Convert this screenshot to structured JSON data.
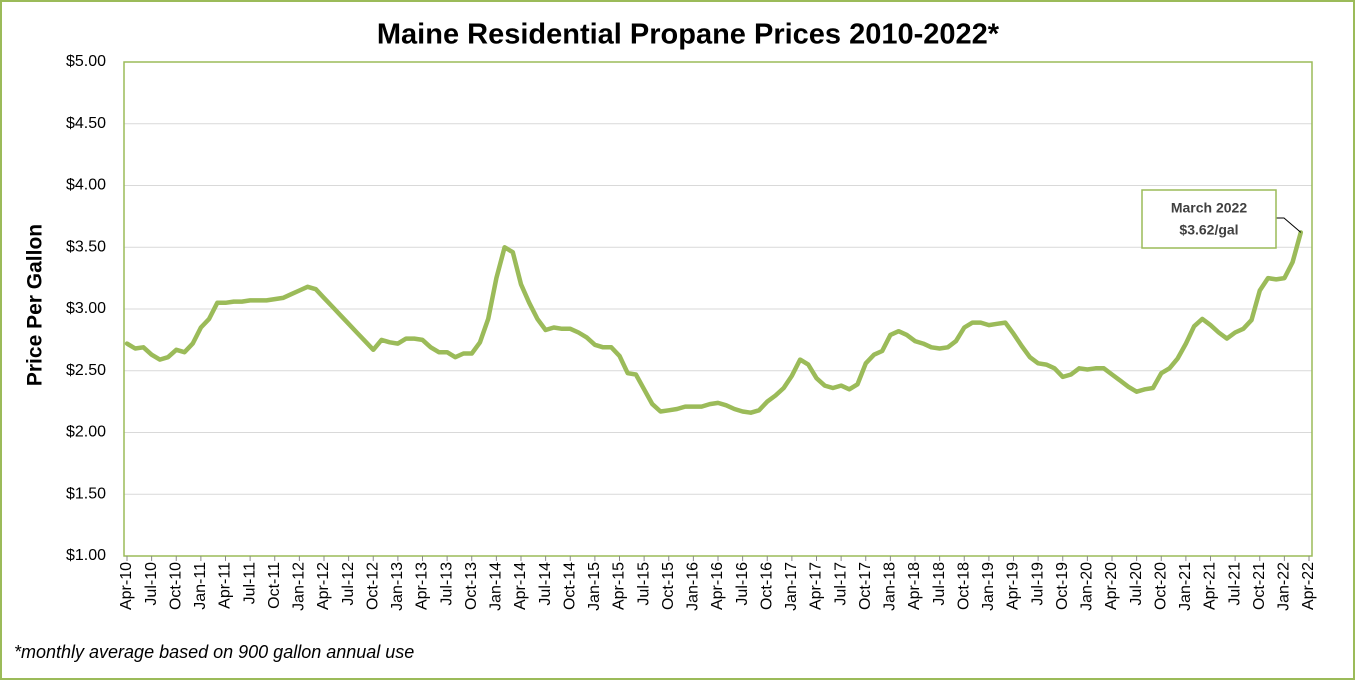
{
  "chart_data": {
    "type": "line",
    "title": "Maine Residential Propane Prices 2010-2022*",
    "y_label": "Price Per Gallon",
    "footnote": "*monthly average based on 900 gallon annual use",
    "annotation": [
      "March 2022",
      "$3.62/gal"
    ],
    "categories": [
      "Apr-10",
      null,
      null,
      "Jul-10",
      null,
      null,
      "Oct-10",
      null,
      null,
      "Jan-11",
      null,
      null,
      "Apr-11",
      null,
      null,
      "Jul-11",
      null,
      null,
      "Oct-11",
      null,
      null,
      "Jan-12",
      null,
      null,
      "Apr-12",
      null,
      null,
      "Jul-12",
      null,
      null,
      "Oct-12",
      null,
      null,
      "Jan-13",
      null,
      null,
      "Apr-13",
      null,
      null,
      "Jul-13",
      null,
      null,
      "Oct-13",
      null,
      null,
      "Jan-14",
      null,
      null,
      "Apr-14",
      null,
      null,
      "Jul-14",
      null,
      null,
      "Oct-14",
      null,
      null,
      "Jan-15",
      null,
      null,
      "Apr-15",
      null,
      null,
      "Jul-15",
      null,
      null,
      "Oct-15",
      null,
      null,
      "Jan-16",
      null,
      null,
      "Apr-16",
      null,
      null,
      "Jul-16",
      null,
      null,
      "Oct-16",
      null,
      null,
      "Jan-17",
      null,
      null,
      "Apr-17",
      null,
      null,
      "Jul-17",
      null,
      null,
      "Oct-17",
      null,
      null,
      "Jan-18",
      null,
      null,
      "Apr-18",
      null,
      null,
      "Jul-18",
      null,
      null,
      "Oct-18",
      null,
      null,
      "Jan-19",
      null,
      null,
      "Apr-19",
      null,
      null,
      "Jul-19",
      null,
      null,
      "Oct-19",
      null,
      null,
      "Jan-20",
      null,
      null,
      "Apr-20",
      null,
      null,
      "Jul-20",
      null,
      null,
      "Oct-20",
      null,
      null,
      "Jan-21",
      null,
      null,
      "Apr-21",
      null,
      null,
      "Jul-21",
      null,
      null,
      "Oct-21",
      null,
      null,
      "Jan-22",
      null,
      null,
      "Apr-22"
    ],
    "series": [
      {
        "name": "Price",
        "color": "#9bbb59",
        "values": [
          2.72,
          2.68,
          2.69,
          2.63,
          2.59,
          2.61,
          2.67,
          2.65,
          2.72,
          2.85,
          2.92,
          3.05,
          3.05,
          3.06,
          3.06,
          3.07,
          3.07,
          3.07,
          3.08,
          3.09,
          3.12,
          3.15,
          3.18,
          3.16,
          3.09,
          3.02,
          2.95,
          2.88,
          2.81,
          2.74,
          2.67,
          2.75,
          2.73,
          2.72,
          2.76,
          2.76,
          2.75,
          2.69,
          2.65,
          2.65,
          2.61,
          2.64,
          2.64,
          2.73,
          2.92,
          3.25,
          3.5,
          3.46,
          3.2,
          3.05,
          2.92,
          2.83,
          2.85,
          2.84,
          2.84,
          2.81,
          2.77,
          2.71,
          2.69,
          2.69,
          2.62,
          2.48,
          2.47,
          2.35,
          2.23,
          2.17,
          2.18,
          2.19,
          2.21,
          2.21,
          2.21,
          2.23,
          2.24,
          2.22,
          2.19,
          2.17,
          2.16,
          2.18,
          2.25,
          2.3,
          2.36,
          2.46,
          2.59,
          2.55,
          2.44,
          2.38,
          2.36,
          2.38,
          2.35,
          2.39,
          2.56,
          2.63,
          2.66,
          2.79,
          2.82,
          2.79,
          2.74,
          2.72,
          2.69,
          2.68,
          2.69,
          2.74,
          2.85,
          2.89,
          2.89,
          2.87,
          2.88,
          2.89,
          2.8,
          2.7,
          2.61,
          2.56,
          2.55,
          2.52,
          2.45,
          2.47,
          2.52,
          2.51,
          2.52,
          2.52,
          2.47,
          2.42,
          2.37,
          2.33,
          2.35,
          2.36,
          2.48,
          2.52,
          2.6,
          2.72,
          2.86,
          2.92,
          2.87,
          2.81,
          2.76,
          2.81,
          2.84,
          2.91,
          3.15,
          3.25,
          3.24,
          3.25,
          3.38,
          3.62,
          null
        ]
      }
    ],
    "ylim": [
      1,
      5
    ],
    "yticks": [
      {
        "value": 1,
        "label": "$1.00"
      },
      {
        "value": 1.5,
        "label": "$1.50"
      },
      {
        "value": 2,
        "label": "$2.00"
      },
      {
        "value": 2.5,
        "label": "$2.50"
      },
      {
        "value": 3,
        "label": "$3.00"
      },
      {
        "value": 3.5,
        "label": "$3.50"
      },
      {
        "value": 4,
        "label": "$4.00"
      },
      {
        "value": 4.5,
        "label": "$4.50"
      },
      {
        "value": 5,
        "label": "$5.00"
      }
    ],
    "grid": true
  }
}
